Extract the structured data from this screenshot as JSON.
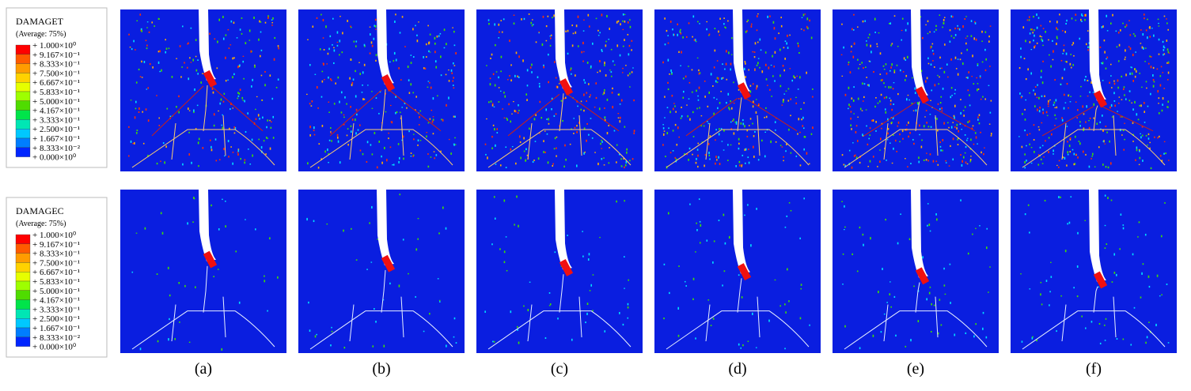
{
  "legends": [
    {
      "title": "DAMAGET",
      "subtitle": "(Average: 75%)",
      "labels": [
        "+ 1.000×10⁰",
        "+ 9.167×10⁻¹",
        "+ 8.333×10⁻¹",
        "+ 7.500×10⁻¹",
        "+ 6.667×10⁻¹",
        "+ 5.833×10⁻¹",
        "+ 5.000×10⁻¹",
        "+ 4.167×10⁻¹",
        "+ 3.333×10⁻¹",
        "+ 2.500×10⁻¹",
        "+ 1.667×10⁻¹",
        "+ 8.333×10⁻²",
        "+ 0.000×10⁰"
      ],
      "colors": [
        "#ff0000",
        "#ff5a00",
        "#ff9c00",
        "#ffd200",
        "#e6ff00",
        "#9eff00",
        "#4fdc00",
        "#00e44a",
        "#00e6b4",
        "#00c8ff",
        "#007dff",
        "#0025ff"
      ]
    },
    {
      "title": "DAMAGEC",
      "subtitle": "(Average: 75%)",
      "labels": [
        "+ 1.000×10⁰",
        "+ 9.167×10⁻¹",
        "+ 8.333×10⁻¹",
        "+ 7.500×10⁻¹",
        "+ 6.667×10⁻¹",
        "+ 5.833×10⁻¹",
        "+ 5.000×10⁻¹",
        "+ 4.167×10⁻¹",
        "+ 3.333×10⁻¹",
        "+ 2.500×10⁻¹",
        "+ 1.667×10⁻¹",
        "+ 8.333×10⁻²",
        "+ 0.000×10⁰"
      ],
      "colors": [
        "#ff0000",
        "#ff5a00",
        "#ff9c00",
        "#ffd200",
        "#e6ff00",
        "#9eff00",
        "#4fdc00",
        "#00e44a",
        "#00e6b4",
        "#00c8ff",
        "#007dff",
        "#0025ff"
      ]
    }
  ],
  "panel_labels": [
    "(a)",
    "(b)",
    "(c)",
    "(d)",
    "(e)",
    "(f)"
  ]
}
